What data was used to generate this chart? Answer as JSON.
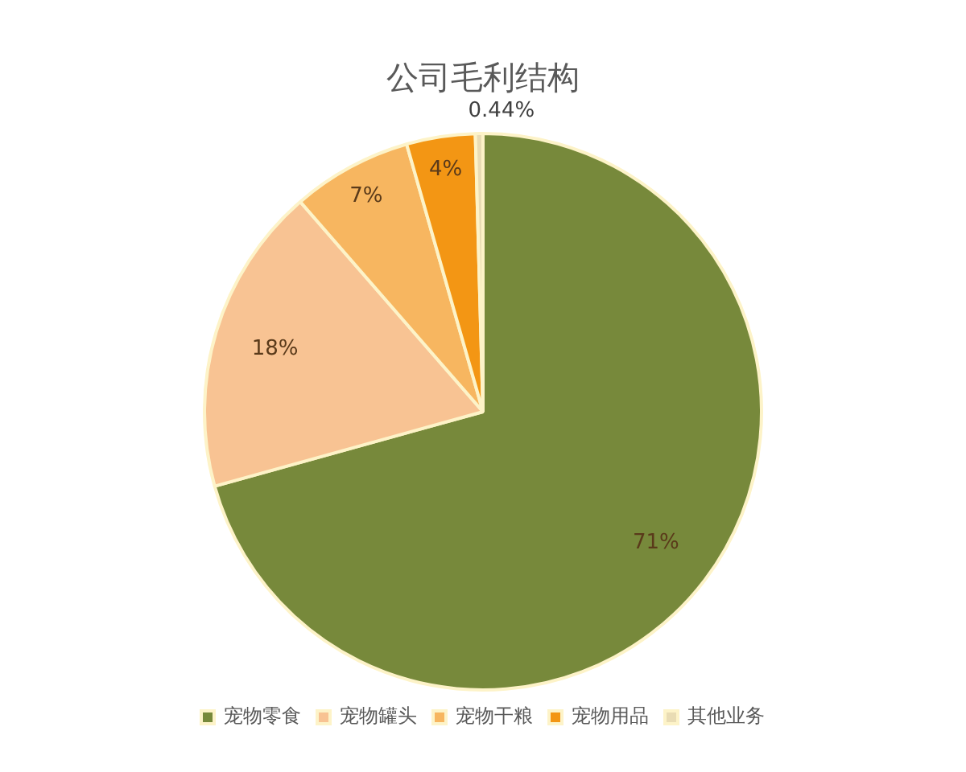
{
  "chart_data": {
    "type": "pie",
    "title": "公司毛利结构",
    "categories": [
      "宠物零食",
      "宠物罐头",
      "宠物干粮",
      "宠物用品",
      "其他业务"
    ],
    "values": [
      71,
      18,
      7,
      4,
      0.44
    ],
    "colors": [
      "#77893b",
      "#f8c393",
      "#f7b660",
      "#f39614",
      "#e9dcb4"
    ],
    "value_labels": [
      "71%",
      "18%",
      "7%",
      "4%",
      "0.44%"
    ],
    "legend": "bottom"
  }
}
